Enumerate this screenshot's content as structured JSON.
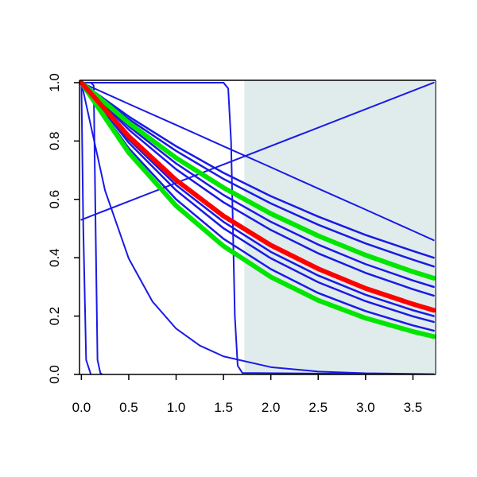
{
  "chart_data": {
    "type": "line",
    "xlim": [
      -0.02,
      3.74
    ],
    "ylim": [
      0,
      1.008
    ],
    "xticks": [
      {
        "value": 0,
        "label": "0.0"
      },
      0.5,
      {
        "value": 1,
        "label": "1.0"
      },
      1.5,
      {
        "value": 2,
        "label": "2.0"
      },
      2.5,
      {
        "value": 3,
        "label": "3.0"
      },
      3.5
    ],
    "yticks": [
      {
        "value": 0,
        "label": "0.0"
      },
      0.2,
      0.4,
      0.6,
      0.8,
      {
        "value": 1,
        "label": "1.0"
      }
    ],
    "shade": {
      "from": 1.72,
      "color": "#e0ecec"
    },
    "x": [
      0,
      0.5,
      1,
      1.5,
      2,
      2.5,
      3,
      3.5,
      3.72
    ],
    "series": [
      {
        "color": "#1a1ae6",
        "line_width": 2,
        "values": [
          1,
          0.927,
          0.855,
          0.782,
          0.71,
          0.637,
          0.565,
          0.492,
          0.46
        ]
      },
      {
        "color": "#1a1ae6",
        "line_width": 2.5,
        "values": [
          1,
          0.884,
          0.782,
          0.691,
          0.611,
          0.541,
          0.478,
          0.423,
          0.4
        ]
      },
      {
        "color": "#1a1ae6",
        "line_width": 2.5,
        "values": [
          1,
          0.875,
          0.766,
          0.67,
          0.586,
          0.513,
          0.449,
          0.393,
          0.37
        ]
      },
      {
        "color": "#1a1ae6",
        "line_width": 2.5,
        "values": [
          1,
          0.85,
          0.723,
          0.615,
          0.523,
          0.445,
          0.378,
          0.322,
          0.3
        ]
      },
      {
        "color": "#1a1ae6",
        "line_width": 2.5,
        "values": [
          1,
          0.839,
          0.703,
          0.59,
          0.495,
          0.415,
          0.348,
          0.292,
          0.27
        ]
      },
      {
        "color": "#1a1ae6",
        "line_width": 2.5,
        "values": [
          1,
          0.805,
          0.649,
          0.523,
          0.42,
          0.339,
          0.273,
          0.22,
          0.2
        ]
      },
      {
        "color": "#1a1ae6",
        "line_width": 2.5,
        "values": [
          1,
          0.794,
          0.631,
          0.501,
          0.398,
          0.316,
          0.251,
          0.199,
          0.18
        ]
      },
      {
        "color": "#1a1ae6",
        "line_width": 2.5,
        "values": [
          1,
          0.775,
          0.6,
          0.465,
          0.361,
          0.279,
          0.217,
          0.168,
          0.15
        ]
      },
      {
        "color": "#1a1ae6",
        "line_width": 2,
        "x": [
          0,
          0.25,
          0.5,
          0.75,
          1,
          1.25,
          1.5,
          2,
          2.5,
          3,
          3.72
        ],
        "values": [
          1,
          0.63,
          0.397,
          0.25,
          0.157,
          0.099,
          0.062,
          0.025,
          0.01,
          0.004,
          0.001
        ]
      },
      {
        "color": "#1a1ae6",
        "line_width": 2,
        "x": [
          0,
          3.72
        ],
        "values": [
          0.53,
          1
        ]
      },
      {
        "color": "#1a1ae6",
        "line_width": 2,
        "x": [
          0,
          0.02,
          0.05,
          0.1
        ],
        "values": [
          1,
          0.5,
          0.05,
          0
        ]
      },
      {
        "color": "#1a1ae6",
        "line_width": 2,
        "x": [
          0.1,
          0.13,
          0.15,
          0.17,
          0.2,
          0.22
        ],
        "values": [
          1,
          0.99,
          0.5,
          0.05,
          0.005,
          0
        ]
      },
      {
        "color": "#1a1ae6",
        "line_width": 2,
        "x": [
          0,
          1.5,
          1.55,
          1.58,
          1.62,
          1.65,
          1.7,
          3.72
        ],
        "values": [
          1,
          1,
          0.98,
          0.8,
          0.2,
          0.03,
          0.005,
          0
        ]
      },
      {
        "color": "#00e600",
        "line_width": 6,
        "values": [
          1,
          0.862,
          0.742,
          0.64,
          0.551,
          0.475,
          0.409,
          0.352,
          0.33
        ]
      },
      {
        "color": "#00e600",
        "line_width": 6,
        "values": [
          1,
          0.76,
          0.578,
          0.44,
          0.334,
          0.254,
          0.193,
          0.147,
          0.13
        ]
      },
      {
        "color": "#ff0000",
        "line_width": 6,
        "values": [
          1,
          0.816,
          0.666,
          0.543,
          0.443,
          0.362,
          0.295,
          0.241,
          0.22
        ]
      }
    ]
  }
}
